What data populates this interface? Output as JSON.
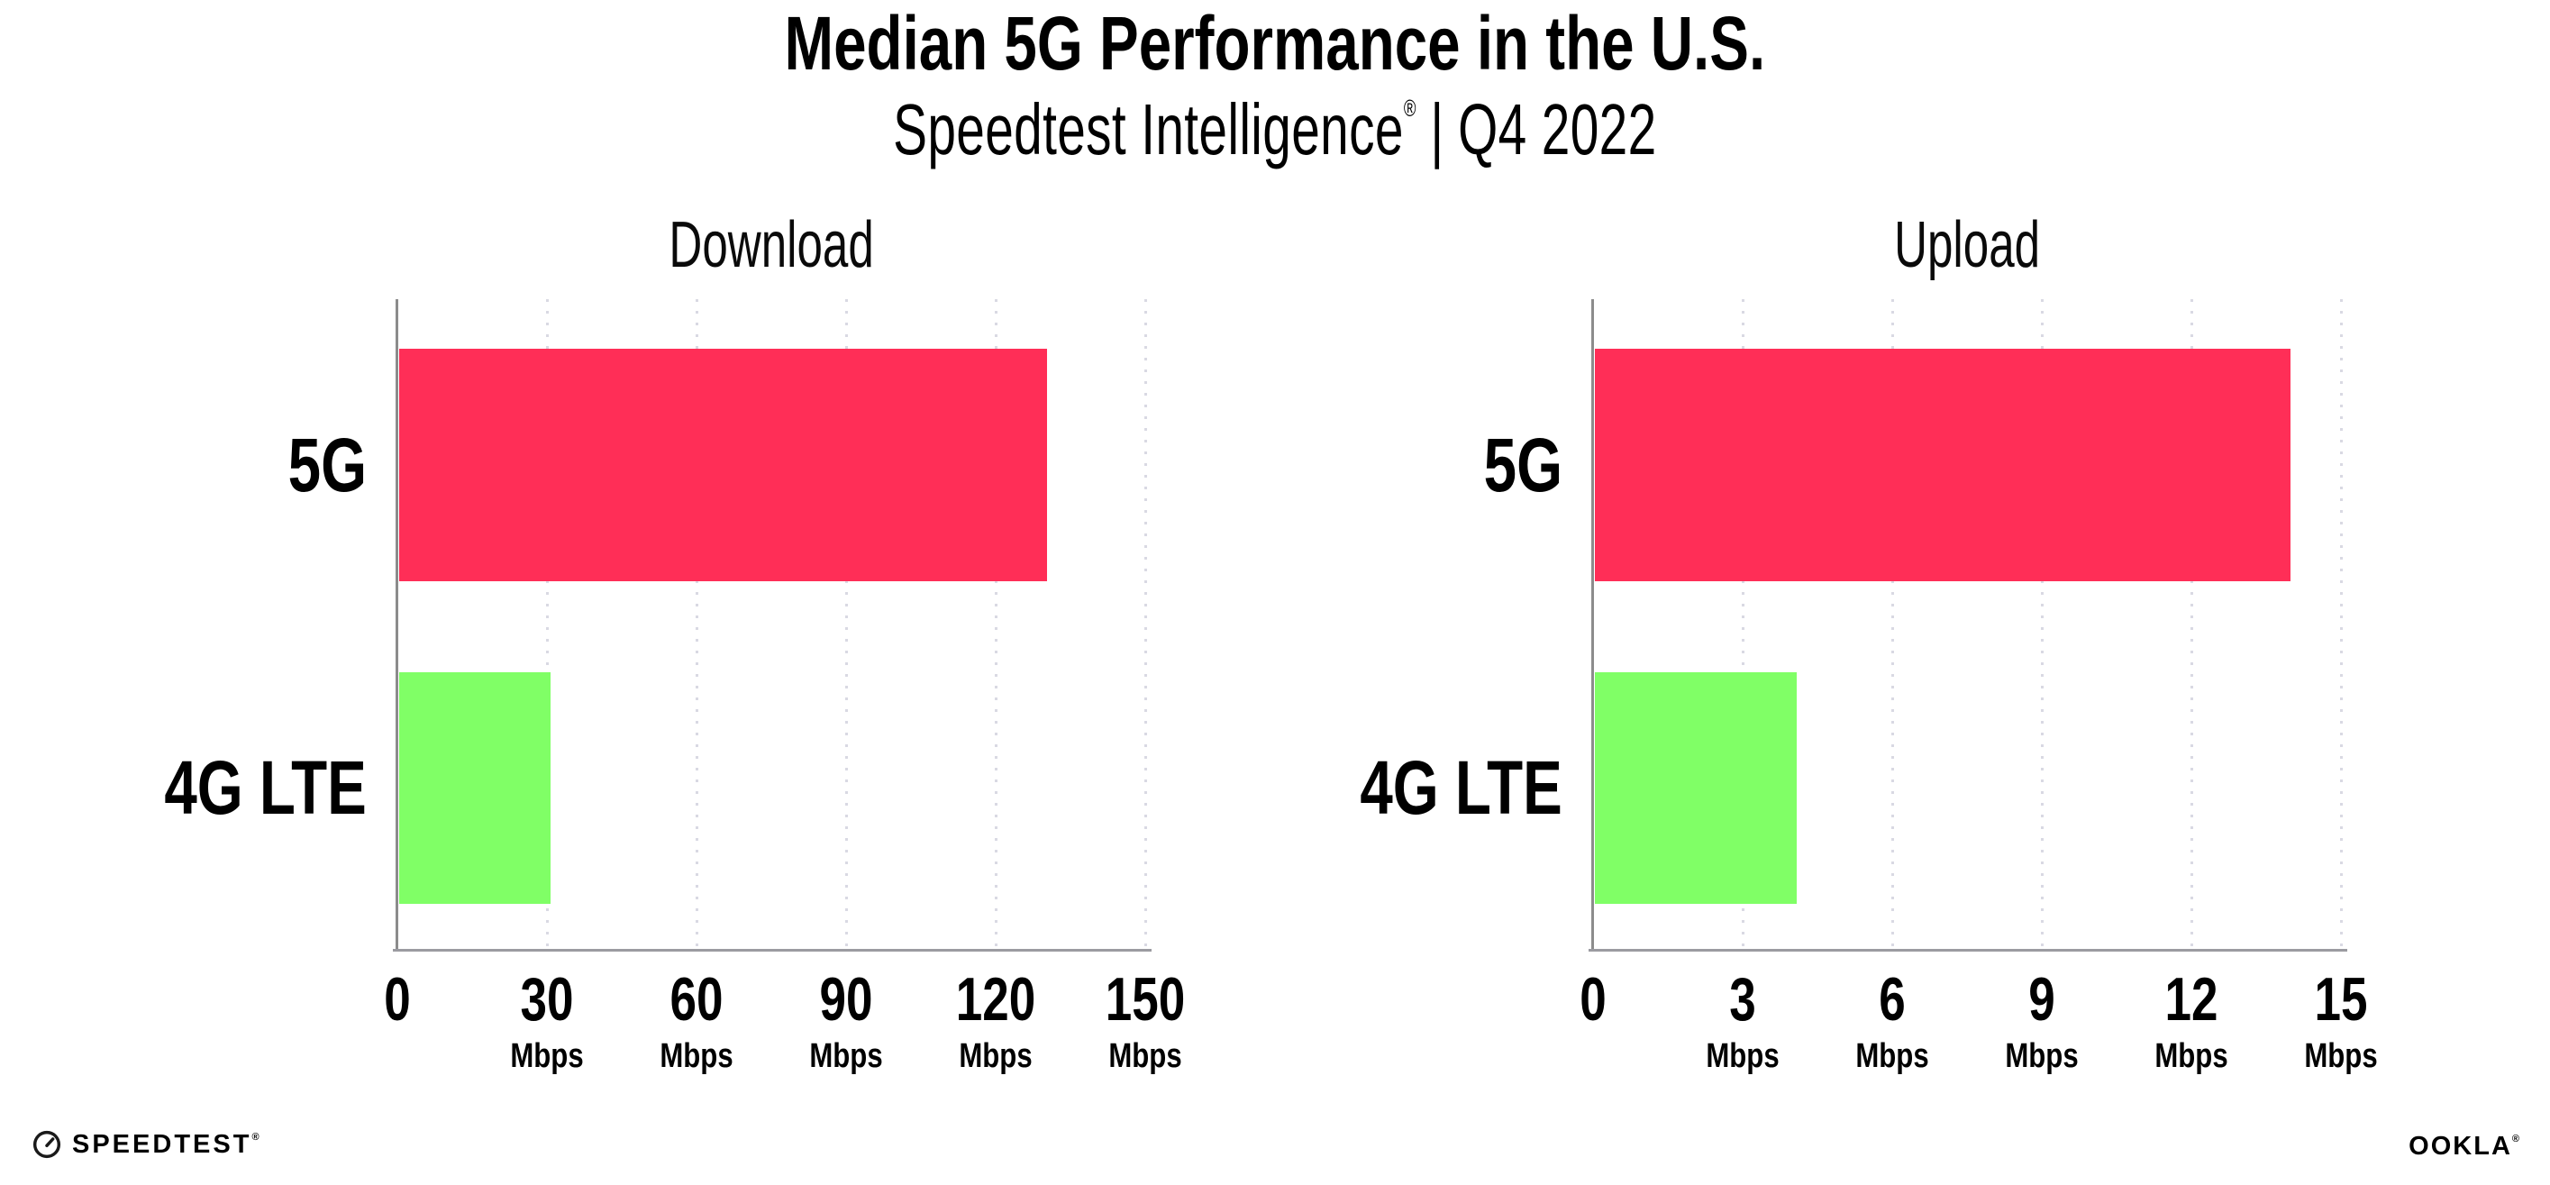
{
  "header": {
    "title": "Median 5G Performance in the U.S.",
    "subtitle": {
      "brand": "Speedtest Intelligence",
      "registered": "®",
      "separator": "|",
      "period": "Q4 2022"
    }
  },
  "footer": {
    "speedtest": {
      "label": "SPEEDTEST",
      "registered": "®"
    },
    "ookla": {
      "label": "OOKLA",
      "registered": "®"
    }
  },
  "colors": {
    "bar_5g": "#ff2e57",
    "bar_4g_lte": "#80ff66",
    "gridline": "#d9d9e3",
    "axis_bottom": "#9b9ba1",
    "axis_left": "#8c8c8c",
    "text": "#000000"
  },
  "chart_data": [
    {
      "type": "bar",
      "orientation": "horizontal",
      "title": "Download",
      "categories": [
        "5G",
        "4G LTE"
      ],
      "values": [
        129.93,
        30.45
      ],
      "unit": "Mbps",
      "xlim": [
        0,
        150
      ],
      "xticks": [
        0,
        30,
        60,
        90,
        120,
        150
      ],
      "grid": "vertical-dotted",
      "legend": "none",
      "bar_colors": [
        "#ff2e57",
        "#80ff66"
      ]
    },
    {
      "type": "bar",
      "orientation": "horizontal",
      "title": "Upload",
      "categories": [
        "5G",
        "4G LTE"
      ],
      "values": [
        13.96,
        4.05
      ],
      "unit": "Mbps",
      "xlim": [
        0,
        15
      ],
      "xticks": [
        0,
        3,
        6,
        9,
        12,
        15
      ],
      "grid": "vertical-dotted",
      "legend": "none",
      "bar_colors": [
        "#ff2e57",
        "#80ff66"
      ]
    }
  ]
}
